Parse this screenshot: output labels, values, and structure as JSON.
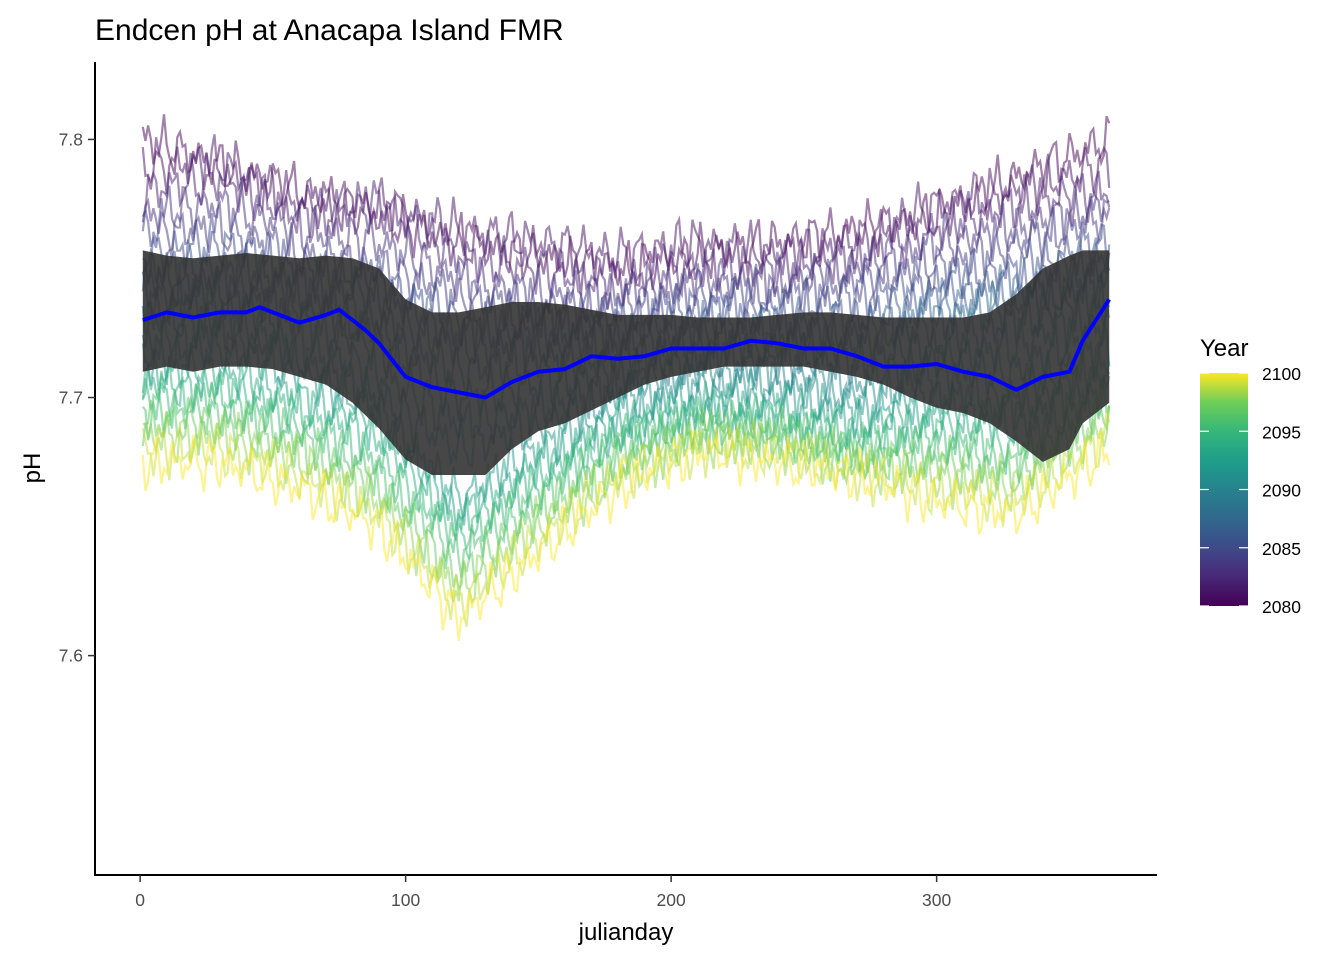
{
  "chart_data": {
    "type": "line",
    "title": "Endcen pH at Anacapa Island FMR",
    "xlabel": "julianday",
    "ylabel": "pH",
    "xlim": [
      -17,
      383
    ],
    "ylim": [
      7.515,
      7.83
    ],
    "x_ticks": [
      0,
      100,
      200,
      300
    ],
    "x_tick_labels": [
      "0",
      "100",
      "200",
      "300"
    ],
    "y_ticks": [
      7.6,
      7.7,
      7.8
    ],
    "y_tick_labels": [
      "7.6",
      "7.7",
      "7.8"
    ],
    "grid": false,
    "legend": {
      "title": "Year",
      "placement": "right",
      "type": "colorbar",
      "colormap": "viridis",
      "range": [
        2080,
        2100
      ],
      "ticks": [
        2080,
        2085,
        2090,
        2095,
        2100
      ],
      "tick_labels": [
        "2080",
        "2085",
        "2090",
        "2095",
        "2100"
      ]
    },
    "years": [
      2080,
      2081,
      2082,
      2083,
      2084,
      2085,
      2086,
      2087,
      2088,
      2089,
      2090,
      2091,
      2092,
      2093,
      2094,
      2095,
      2096,
      2097,
      2098,
      2099,
      2100
    ],
    "yearly_lines_note": "one daily pH line per year 2080-2100, semi-transparent, coloured by year",
    "yearly_anchor_days": [
      1,
      30,
      60,
      90,
      120,
      150,
      180,
      210,
      240,
      270,
      300,
      330,
      365
    ],
    "yearly_anchor_values": [
      [
        7.8,
        7.79,
        7.78,
        7.77,
        7.76,
        7.755,
        7.75,
        7.755,
        7.76,
        7.765,
        7.77,
        7.785,
        7.8
      ],
      [
        7.79,
        7.79,
        7.775,
        7.775,
        7.765,
        7.76,
        7.755,
        7.76,
        7.755,
        7.76,
        7.775,
        7.78,
        7.79
      ],
      [
        7.78,
        7.785,
        7.77,
        7.775,
        7.755,
        7.75,
        7.745,
        7.75,
        7.75,
        7.755,
        7.765,
        7.775,
        7.78
      ],
      [
        7.77,
        7.775,
        7.765,
        7.76,
        7.745,
        7.74,
        7.74,
        7.745,
        7.745,
        7.75,
        7.76,
        7.765,
        7.775
      ],
      [
        7.765,
        7.765,
        7.755,
        7.75,
        7.74,
        7.735,
        7.735,
        7.74,
        7.74,
        7.745,
        7.75,
        7.76,
        7.77
      ],
      [
        7.755,
        7.76,
        7.75,
        7.745,
        7.73,
        7.73,
        7.73,
        7.735,
        7.735,
        7.74,
        7.745,
        7.75,
        7.76
      ],
      [
        7.75,
        7.75,
        7.745,
        7.74,
        7.725,
        7.725,
        7.725,
        7.73,
        7.73,
        7.73,
        7.74,
        7.745,
        7.755
      ],
      [
        7.745,
        7.745,
        7.74,
        7.73,
        7.72,
        7.72,
        7.72,
        7.725,
        7.725,
        7.725,
        7.735,
        7.74,
        7.75
      ],
      [
        7.74,
        7.74,
        7.735,
        7.725,
        7.71,
        7.715,
        7.715,
        7.72,
        7.72,
        7.72,
        7.73,
        7.735,
        7.745
      ],
      [
        7.735,
        7.735,
        7.73,
        7.72,
        7.7,
        7.705,
        7.71,
        7.715,
        7.715,
        7.715,
        7.72,
        7.73,
        7.74
      ],
      [
        7.73,
        7.73,
        7.72,
        7.71,
        7.69,
        7.695,
        7.705,
        7.71,
        7.71,
        7.705,
        7.715,
        7.72,
        7.735
      ],
      [
        7.72,
        7.725,
        7.715,
        7.7,
        7.68,
        7.69,
        7.7,
        7.705,
        7.705,
        7.7,
        7.71,
        7.71,
        7.73
      ],
      [
        7.715,
        7.72,
        7.71,
        7.695,
        7.66,
        7.68,
        7.695,
        7.7,
        7.7,
        7.695,
        7.7,
        7.7,
        7.72
      ],
      [
        7.71,
        7.71,
        7.7,
        7.69,
        7.655,
        7.675,
        7.69,
        7.695,
        7.695,
        7.69,
        7.695,
        7.695,
        7.715
      ],
      [
        7.705,
        7.705,
        7.695,
        7.685,
        7.65,
        7.67,
        7.685,
        7.695,
        7.69,
        7.685,
        7.69,
        7.69,
        7.71
      ],
      [
        7.7,
        7.7,
        7.69,
        7.675,
        7.645,
        7.665,
        7.685,
        7.69,
        7.69,
        7.68,
        7.685,
        7.68,
        7.705
      ],
      [
        7.695,
        7.695,
        7.685,
        7.67,
        7.64,
        7.66,
        7.68,
        7.69,
        7.685,
        7.68,
        7.68,
        7.675,
        7.7
      ],
      [
        7.69,
        7.69,
        7.68,
        7.665,
        7.63,
        7.655,
        7.675,
        7.685,
        7.685,
        7.675,
        7.675,
        7.67,
        7.695
      ],
      [
        7.685,
        7.685,
        7.675,
        7.66,
        7.625,
        7.65,
        7.67,
        7.685,
        7.68,
        7.675,
        7.67,
        7.665,
        7.69
      ],
      [
        7.68,
        7.68,
        7.67,
        7.655,
        7.62,
        7.645,
        7.67,
        7.68,
        7.68,
        7.67,
        7.665,
        7.66,
        7.685
      ],
      [
        7.675,
        7.675,
        7.665,
        7.65,
        7.615,
        7.64,
        7.665,
        7.68,
        7.675,
        7.67,
        7.66,
        7.655,
        7.68
      ]
    ],
    "series": [
      {
        "type": "line",
        "color": "#0000ff",
        "x": [
          1,
          10,
          20,
          30,
          40,
          45,
          55,
          60,
          70,
          75,
          85,
          90,
          100,
          110,
          120,
          130,
          140,
          150,
          160,
          170,
          180,
          190,
          200,
          210,
          220,
          230,
          240,
          250,
          260,
          270,
          280,
          290,
          300,
          310,
          320,
          330,
          340,
          350,
          355,
          365
        ],
        "values": [
          7.73,
          7.733,
          7.731,
          7.733,
          7.733,
          7.735,
          7.731,
          7.729,
          7.732,
          7.734,
          7.726,
          7.721,
          7.708,
          7.704,
          7.702,
          7.7,
          7.706,
          7.71,
          7.711,
          7.716,
          7.715,
          7.716,
          7.719,
          7.719,
          7.719,
          7.722,
          7.721,
          7.719,
          7.719,
          7.716,
          7.712,
          7.712,
          7.713,
          7.71,
          7.708,
          7.703,
          7.708,
          7.71,
          7.722,
          7.738
        ]
      },
      {
        "type": "ribbon",
        "color": "#333333",
        "x": [
          1,
          10,
          20,
          30,
          40,
          50,
          60,
          70,
          80,
          90,
          100,
          110,
          120,
          130,
          140,
          150,
          160,
          170,
          180,
          190,
          200,
          210,
          220,
          230,
          240,
          250,
          260,
          270,
          280,
          290,
          300,
          310,
          320,
          330,
          340,
          350,
          355,
          365
        ],
        "lower": [
          7.71,
          7.712,
          7.71,
          7.712,
          7.712,
          7.711,
          7.708,
          7.705,
          7.698,
          7.688,
          7.676,
          7.67,
          7.67,
          7.67,
          7.68,
          7.687,
          7.69,
          7.695,
          7.7,
          7.705,
          7.708,
          7.71,
          7.712,
          7.712,
          7.712,
          7.712,
          7.71,
          7.708,
          7.705,
          7.7,
          7.696,
          7.694,
          7.69,
          7.683,
          7.675,
          7.68,
          7.69,
          7.698
        ],
        "upper": [
          7.757,
          7.755,
          7.754,
          7.755,
          7.756,
          7.755,
          7.754,
          7.755,
          7.754,
          7.75,
          7.738,
          7.733,
          7.733,
          7.735,
          7.737,
          7.737,
          7.736,
          7.734,
          7.732,
          7.732,
          7.732,
          7.731,
          7.731,
          7.731,
          7.732,
          7.733,
          7.733,
          7.732,
          7.731,
          7.731,
          7.731,
          7.731,
          7.733,
          7.74,
          7.75,
          7.755,
          7.757,
          7.757
        ]
      }
    ]
  }
}
